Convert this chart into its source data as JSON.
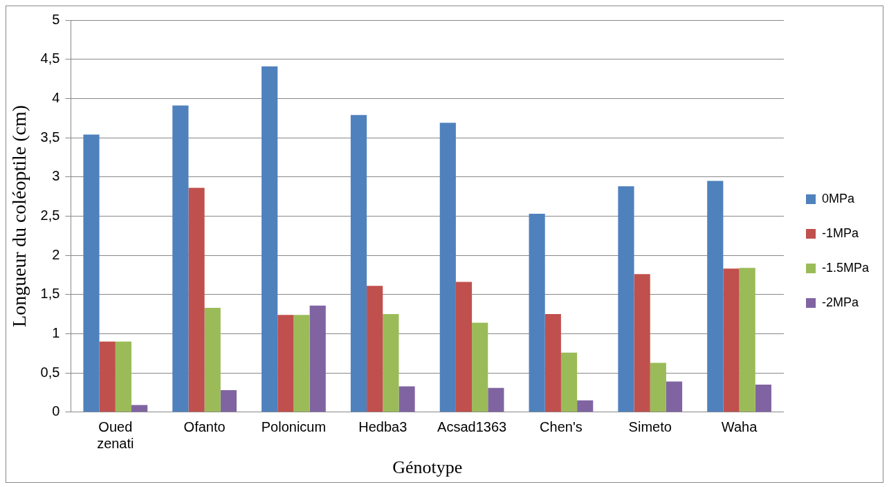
{
  "chart_data": {
    "type": "bar",
    "xlabel": "Génotype",
    "ylabel": "Longueur du coléoptile (cm)",
    "categories": [
      "Oued zenati",
      "Ofanto",
      "Polonicum",
      "Hedba3",
      "Acsad1363",
      "Chen's",
      "Simeto",
      "Waha"
    ],
    "series": [
      {
        "name": "0MPa",
        "color": "#4f81bd",
        "values": [
          3.54,
          3.91,
          4.41,
          3.79,
          3.69,
          2.53,
          2.88,
          2.95
        ]
      },
      {
        "name": "-1MPa",
        "color": "#c0504d",
        "values": [
          0.9,
          2.86,
          1.24,
          1.61,
          1.66,
          1.25,
          1.76,
          1.83
        ]
      },
      {
        "name": "-1.5MPa",
        "color": "#9bbb59",
        "values": [
          0.9,
          1.33,
          1.24,
          1.25,
          1.14,
          0.76,
          0.63,
          1.84
        ]
      },
      {
        "name": "-2MPa",
        "color": "#8064a2",
        "values": [
          0.09,
          0.28,
          1.36,
          0.33,
          0.31,
          0.15,
          0.39,
          0.35
        ]
      }
    ],
    "ylim": [
      0,
      5
    ],
    "yticks": [
      0,
      {
        "value": 0.5,
        "label": "0,5"
      },
      1,
      {
        "value": 1.5,
        "label": "1,5"
      },
      2,
      {
        "value": 2.5,
        "label": "2,5"
      },
      3,
      {
        "value": 3.5,
        "label": "3,5"
      },
      4,
      {
        "value": 4.5,
        "label": "4,5"
      },
      5
    ],
    "grid": "y",
    "legend": "right"
  }
}
